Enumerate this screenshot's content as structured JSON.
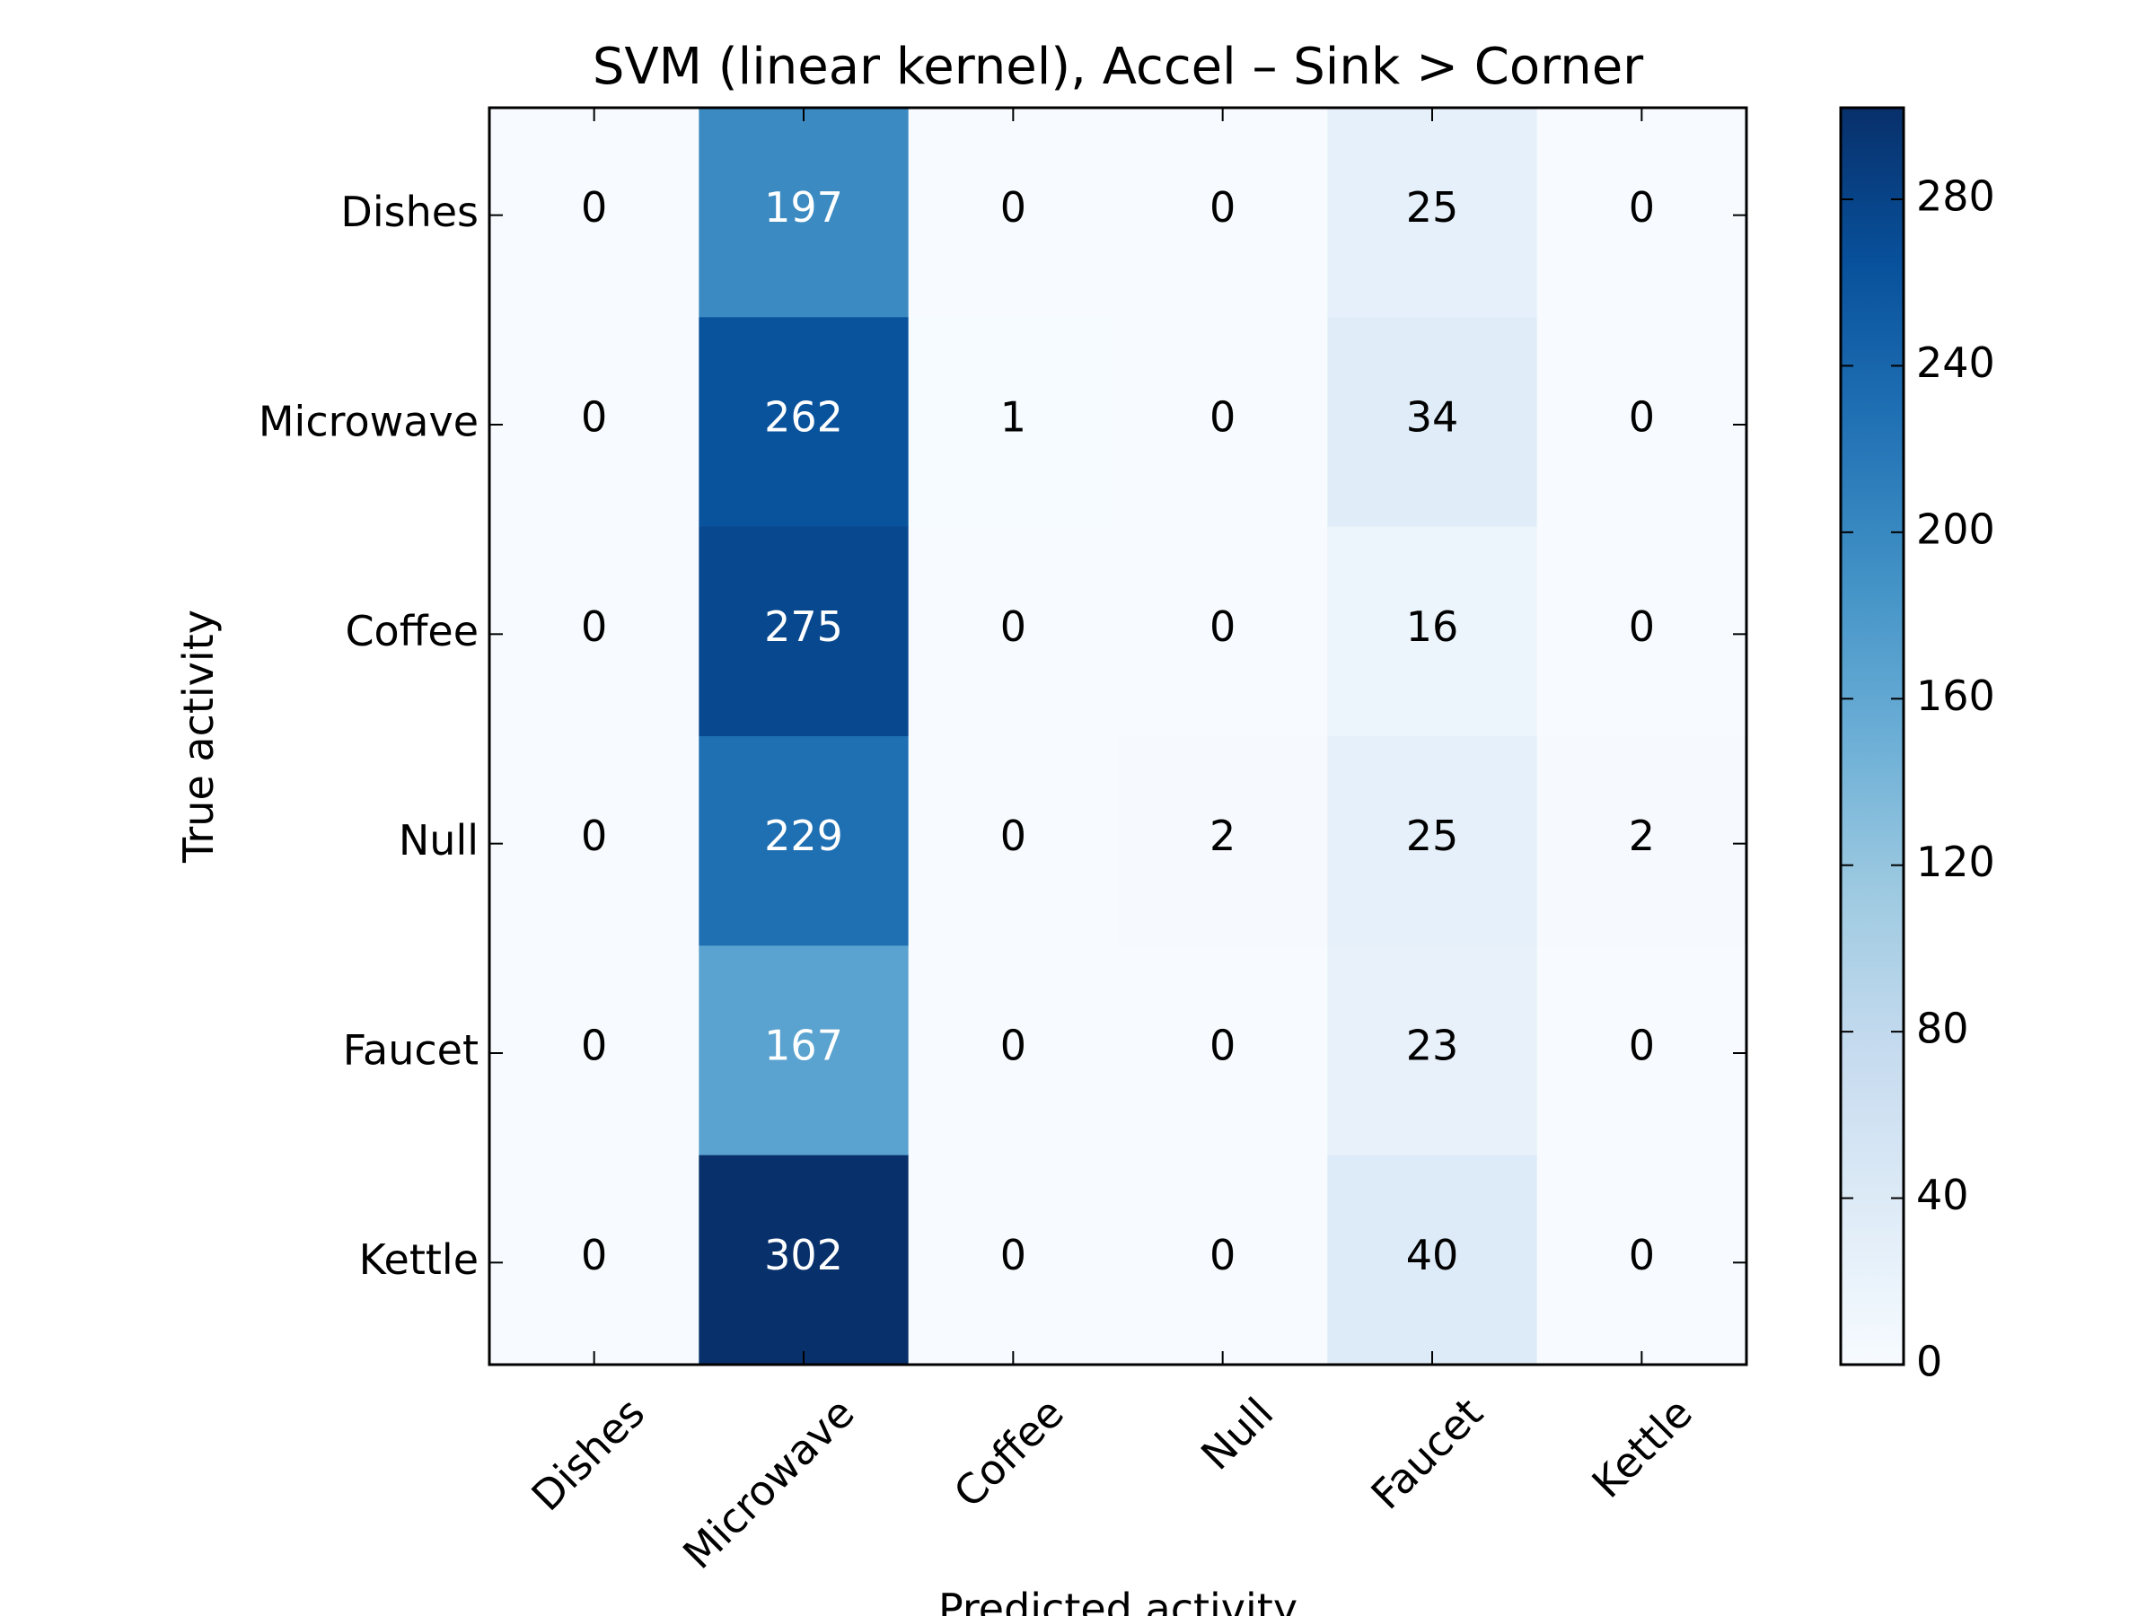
{
  "chart_data": {
    "type": "heatmap",
    "title": "SVM (linear kernel), Accel – Sink > Corner",
    "xlabel": "Predicted activity",
    "ylabel": "True activity",
    "x_categories": [
      "Dishes",
      "Microwave",
      "Coffee",
      "Null",
      "Faucet",
      "Kettle"
    ],
    "y_categories": [
      "Dishes",
      "Microwave",
      "Coffee",
      "Null",
      "Faucet",
      "Kettle"
    ],
    "values": [
      [
        0,
        197,
        0,
        0,
        25,
        0
      ],
      [
        0,
        262,
        1,
        0,
        34,
        0
      ],
      [
        0,
        275,
        0,
        0,
        16,
        0
      ],
      [
        0,
        229,
        0,
        2,
        25,
        2
      ],
      [
        0,
        167,
        0,
        0,
        23,
        0
      ],
      [
        0,
        302,
        0,
        0,
        40,
        0
      ]
    ],
    "colorbar": {
      "range": [
        0,
        302
      ],
      "ticks": [
        0,
        40,
        80,
        120,
        160,
        200,
        240,
        280
      ]
    },
    "colormap": "Blues",
    "colors": [
      "#f7fbff",
      "#deebf7",
      "#c6dbef",
      "#9ecae1",
      "#6baed6",
      "#4292c6",
      "#2171b5",
      "#08519c",
      "#08306b"
    ],
    "text_color_light": "#ffffff",
    "text_color_dark": "#000000",
    "grid": false
  }
}
